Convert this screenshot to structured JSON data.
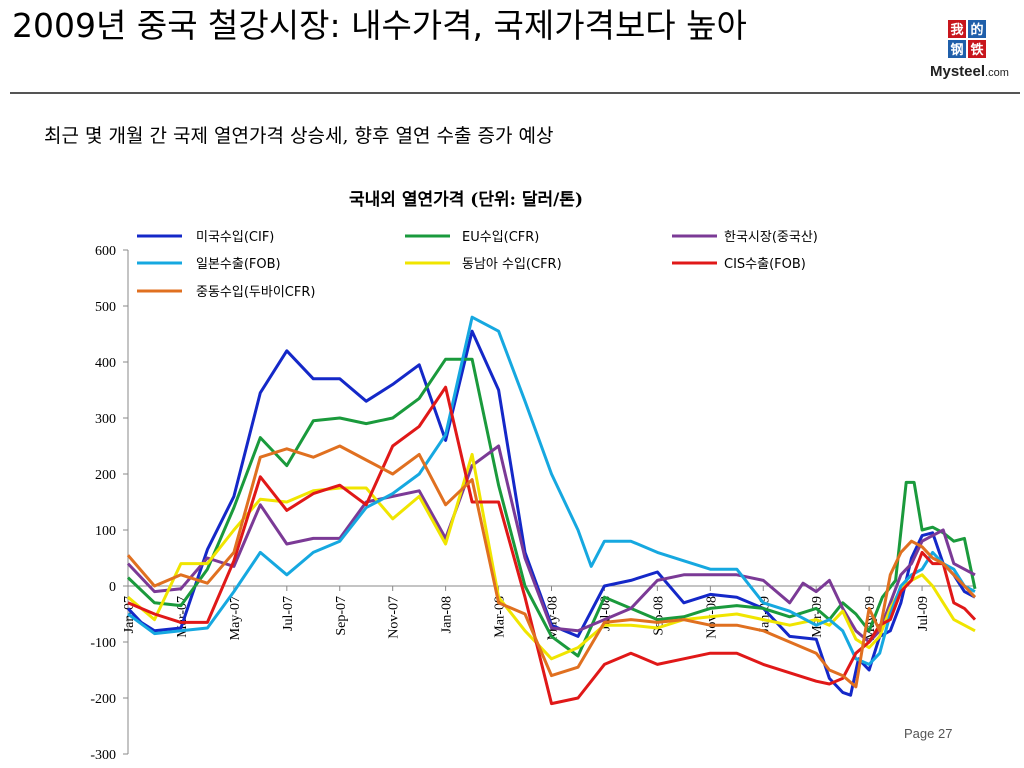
{
  "slide": {
    "title": "2009년 중국 철강시장: 내수가격, 국제가격보다 높아",
    "subtitle": "최근 몇 개월 간 국제 열연가격 상승세, 향후 열연 수출 증가 예상",
    "page_label": "Page  27",
    "logo": {
      "line1": "我的",
      "line2": "钢铁",
      "brand": "Mysteel.com"
    }
  },
  "colors": {
    "title_rule": "#555555",
    "logo_red": "#c8161d",
    "logo_blue": "#1f5faa"
  },
  "chart_data": {
    "type": "line",
    "title": "국내외 열연가격 (단위: 달러/톤)",
    "ylim": [
      -300,
      600
    ],
    "yticks": [
      -300,
      -200,
      -100,
      0,
      100,
      200,
      300,
      400,
      500,
      600
    ],
    "xlim": [
      0,
      32
    ],
    "xticks": [
      {
        "label": "Jan-07",
        "x": 0
      },
      {
        "label": "Mar-07",
        "x": 2
      },
      {
        "label": "May-07",
        "x": 4
      },
      {
        "label": "Jul-07",
        "x": 6
      },
      {
        "label": "Sep-07",
        "x": 8
      },
      {
        "label": "Nov-07",
        "x": 10
      },
      {
        "label": "Jan-08",
        "x": 12
      },
      {
        "label": "Mar-08",
        "x": 14
      },
      {
        "label": "May-08",
        "x": 16
      },
      {
        "label": "Jul-08",
        "x": 18
      },
      {
        "label": "Sep-08",
        "x": 20
      },
      {
        "label": "Nov-08",
        "x": 22
      },
      {
        "label": "Jan-09",
        "x": 24
      },
      {
        "label": "Mar-09",
        "x": 26
      },
      {
        "label": "May-09",
        "x": 28
      },
      {
        "label": "Jul-09",
        "x": 30
      }
    ],
    "grid": false,
    "legend_position": "top",
    "series": [
      {
        "name": "미국수입(CIF)",
        "color": "#1428c8",
        "points": [
          [
            0,
            -40
          ],
          [
            0.5,
            -65
          ],
          [
            1,
            -80
          ],
          [
            2,
            -75
          ],
          [
            3,
            65
          ],
          [
            4,
            160
          ],
          [
            5,
            345
          ],
          [
            6,
            420
          ],
          [
            7,
            370
          ],
          [
            8,
            370
          ],
          [
            9,
            330
          ],
          [
            10,
            360
          ],
          [
            11,
            395
          ],
          [
            12,
            260
          ],
          [
            13,
            455
          ],
          [
            14,
            350
          ],
          [
            15,
            60
          ],
          [
            16,
            -70
          ],
          [
            17,
            -90
          ],
          [
            18,
            0
          ],
          [
            19,
            10
          ],
          [
            20,
            25
          ],
          [
            21,
            -30
          ],
          [
            22,
            -15
          ],
          [
            23,
            -20
          ],
          [
            24,
            -40
          ],
          [
            25,
            -90
          ],
          [
            26,
            -95
          ],
          [
            26.5,
            -165
          ],
          [
            27,
            -190
          ],
          [
            27.3,
            -195
          ],
          [
            27.6,
            -130
          ],
          [
            28,
            -150
          ],
          [
            28.4,
            -90
          ],
          [
            28.8,
            -80
          ],
          [
            29.2,
            -30
          ],
          [
            29.6,
            50
          ],
          [
            30,
            90
          ],
          [
            30.4,
            95
          ],
          [
            30.8,
            40
          ],
          [
            31.2,
            20
          ],
          [
            31.6,
            -10
          ],
          [
            32,
            -20
          ]
        ]
      },
      {
        "name": "EU수입(CFR)",
        "color": "#1a9a3c",
        "points": [
          [
            0,
            15
          ],
          [
            1,
            -30
          ],
          [
            2,
            -35
          ],
          [
            3,
            30
          ],
          [
            4,
            140
          ],
          [
            5,
            265
          ],
          [
            6,
            215
          ],
          [
            7,
            295
          ],
          [
            8,
            300
          ],
          [
            9,
            290
          ],
          [
            10,
            300
          ],
          [
            11,
            335
          ],
          [
            12,
            405
          ],
          [
            13,
            405
          ],
          [
            14,
            180
          ],
          [
            15,
            0
          ],
          [
            16,
            -90
          ],
          [
            17,
            -125
          ],
          [
            18,
            -20
          ],
          [
            19,
            -40
          ],
          [
            20,
            -60
          ],
          [
            21,
            -55
          ],
          [
            22,
            -40
          ],
          [
            23,
            -35
          ],
          [
            24,
            -40
          ],
          [
            25,
            -55
          ],
          [
            26,
            -40
          ],
          [
            26.5,
            -60
          ],
          [
            27,
            -30
          ],
          [
            27.5,
            -50
          ],
          [
            28,
            -80
          ],
          [
            28.5,
            -20
          ],
          [
            29,
            10
          ],
          [
            29.4,
            185
          ],
          [
            29.7,
            185
          ],
          [
            30,
            100
          ],
          [
            30.4,
            105
          ],
          [
            30.8,
            95
          ],
          [
            31.2,
            80
          ],
          [
            31.6,
            85
          ],
          [
            32,
            -5
          ]
        ]
      },
      {
        "name": "한국시장(중국산)",
        "color": "#7b3a96",
        "points": [
          [
            0,
            40
          ],
          [
            1,
            -10
          ],
          [
            2,
            -5
          ],
          [
            3,
            50
          ],
          [
            4,
            35
          ],
          [
            5,
            145
          ],
          [
            6,
            75
          ],
          [
            7,
            85
          ],
          [
            8,
            85
          ],
          [
            9,
            150
          ],
          [
            10,
            160
          ],
          [
            11,
            170
          ],
          [
            12,
            85
          ],
          [
            13,
            215
          ],
          [
            14,
            250
          ],
          [
            15,
            50
          ],
          [
            16,
            -75
          ],
          [
            17,
            -80
          ],
          [
            18,
            -60
          ],
          [
            19,
            -40
          ],
          [
            20,
            10
          ],
          [
            21,
            20
          ],
          [
            22,
            20
          ],
          [
            23,
            20
          ],
          [
            24,
            10
          ],
          [
            25,
            -30
          ],
          [
            25.5,
            5
          ],
          [
            26,
            -10
          ],
          [
            26.5,
            10
          ],
          [
            27,
            -40
          ],
          [
            27.5,
            -80
          ],
          [
            28,
            -100
          ],
          [
            28.4,
            -80
          ],
          [
            28.8,
            -30
          ],
          [
            29.2,
            20
          ],
          [
            29.6,
            40
          ],
          [
            30,
            80
          ],
          [
            30.4,
            90
          ],
          [
            30.8,
            100
          ],
          [
            31.2,
            40
          ],
          [
            31.6,
            30
          ],
          [
            32,
            20
          ]
        ]
      },
      {
        "name": "동남아 수입(CFR)",
        "color": "#f0e500",
        "points": [
          [
            0,
            -20
          ],
          [
            1,
            -60
          ],
          [
            2,
            40
          ],
          [
            3,
            40
          ],
          [
            4,
            100
          ],
          [
            5,
            155
          ],
          [
            6,
            150
          ],
          [
            7,
            170
          ],
          [
            8,
            175
          ],
          [
            9,
            175
          ],
          [
            10,
            120
          ],
          [
            11,
            160
          ],
          [
            12,
            75
          ],
          [
            13,
            235
          ],
          [
            14,
            -20
          ],
          [
            15,
            -80
          ],
          [
            16,
            -130
          ],
          [
            17,
            -110
          ],
          [
            18,
            -70
          ],
          [
            19,
            -70
          ],
          [
            20,
            -75
          ],
          [
            21,
            -60
          ],
          [
            22,
            -55
          ],
          [
            23,
            -50
          ],
          [
            24,
            -60
          ],
          [
            25,
            -70
          ],
          [
            26,
            -60
          ],
          [
            26.5,
            -70
          ],
          [
            27,
            -45
          ],
          [
            27.5,
            -95
          ],
          [
            28,
            -110
          ],
          [
            28.4,
            -90
          ],
          [
            28.8,
            -40
          ],
          [
            29.2,
            -5
          ],
          [
            29.6,
            10
          ],
          [
            30,
            20
          ],
          [
            30.4,
            0
          ],
          [
            30.8,
            -30
          ],
          [
            31.2,
            -60
          ],
          [
            31.6,
            -70
          ],
          [
            32,
            -80
          ]
        ]
      },
      {
        "name": "일본수출(FOB)",
        "color": "#16a8e0",
        "points": [
          [
            0,
            -50
          ],
          [
            1,
            -85
          ],
          [
            2,
            -80
          ],
          [
            3,
            -75
          ],
          [
            4,
            -10
          ],
          [
            5,
            60
          ],
          [
            6,
            20
          ],
          [
            7,
            60
          ],
          [
            8,
            80
          ],
          [
            9,
            140
          ],
          [
            10,
            165
          ],
          [
            11,
            200
          ],
          [
            12,
            270
          ],
          [
            13,
            480
          ],
          [
            14,
            455
          ],
          [
            15,
            330
          ],
          [
            16,
            200
          ],
          [
            17,
            100
          ],
          [
            17.5,
            35
          ],
          [
            18,
            80
          ],
          [
            19,
            80
          ],
          [
            20,
            60
          ],
          [
            21,
            45
          ],
          [
            22,
            30
          ],
          [
            23,
            30
          ],
          [
            24,
            -30
          ],
          [
            25,
            -45
          ],
          [
            26,
            -70
          ],
          [
            26.5,
            -60
          ],
          [
            27,
            -80
          ],
          [
            27.5,
            -130
          ],
          [
            28,
            -140
          ],
          [
            28.4,
            -120
          ],
          [
            28.8,
            -50
          ],
          [
            29.2,
            0
          ],
          [
            29.6,
            20
          ],
          [
            30,
            30
          ],
          [
            30.4,
            60
          ],
          [
            30.8,
            40
          ],
          [
            31.2,
            30
          ],
          [
            31.6,
            0
          ],
          [
            32,
            -10
          ]
        ]
      },
      {
        "name": "CIS수출(FOB)",
        "color": "#e01818",
        "points": [
          [
            0,
            -30
          ],
          [
            1,
            -50
          ],
          [
            2,
            -65
          ],
          [
            3,
            -65
          ],
          [
            4,
            45
          ],
          [
            5,
            195
          ],
          [
            6,
            135
          ],
          [
            7,
            165
          ],
          [
            8,
            180
          ],
          [
            9,
            145
          ],
          [
            10,
            250
          ],
          [
            11,
            285
          ],
          [
            12,
            355
          ],
          [
            13,
            150
          ],
          [
            14,
            150
          ],
          [
            15,
            -20
          ],
          [
            16,
            -210
          ],
          [
            17,
            -200
          ],
          [
            18,
            -140
          ],
          [
            19,
            -120
          ],
          [
            20,
            -140
          ],
          [
            21,
            -130
          ],
          [
            22,
            -120
          ],
          [
            23,
            -120
          ],
          [
            24,
            -140
          ],
          [
            25,
            -155
          ],
          [
            26,
            -170
          ],
          [
            26.5,
            -175
          ],
          [
            27,
            -165
          ],
          [
            27.5,
            -120
          ],
          [
            28,
            -100
          ],
          [
            28.4,
            -70
          ],
          [
            28.8,
            -60
          ],
          [
            29.2,
            -10
          ],
          [
            29.6,
            10
          ],
          [
            30,
            60
          ],
          [
            30.4,
            40
          ],
          [
            30.8,
            40
          ],
          [
            31.2,
            -30
          ],
          [
            31.6,
            -40
          ],
          [
            32,
            -60
          ]
        ]
      },
      {
        "name": "중동수입(두바이CFR)",
        "color": "#e07020",
        "points": [
          [
            0,
            55
          ],
          [
            1,
            0
          ],
          [
            2,
            20
          ],
          [
            3,
            5
          ],
          [
            4,
            60
          ],
          [
            5,
            230
          ],
          [
            6,
            245
          ],
          [
            7,
            230
          ],
          [
            8,
            250
          ],
          [
            9,
            225
          ],
          [
            10,
            200
          ],
          [
            11,
            235
          ],
          [
            12,
            145
          ],
          [
            13,
            190
          ],
          [
            14,
            -30
          ],
          [
            15,
            -50
          ],
          [
            16,
            -160
          ],
          [
            17,
            -145
          ],
          [
            18,
            -65
          ],
          [
            19,
            -60
          ],
          [
            20,
            -65
          ],
          [
            21,
            -60
          ],
          [
            22,
            -70
          ],
          [
            23,
            -70
          ],
          [
            24,
            -80
          ],
          [
            25,
            -100
          ],
          [
            26,
            -120
          ],
          [
            26.5,
            -150
          ],
          [
            27,
            -160
          ],
          [
            27.5,
            -180
          ],
          [
            28,
            -40
          ],
          [
            28.4,
            -80
          ],
          [
            28.8,
            20
          ],
          [
            29.2,
            60
          ],
          [
            29.6,
            80
          ],
          [
            30,
            70
          ],
          [
            30.4,
            50
          ],
          [
            30.8,
            40
          ],
          [
            31.2,
            20
          ],
          [
            31.6,
            0
          ],
          [
            32,
            -20
          ]
        ]
      }
    ]
  }
}
